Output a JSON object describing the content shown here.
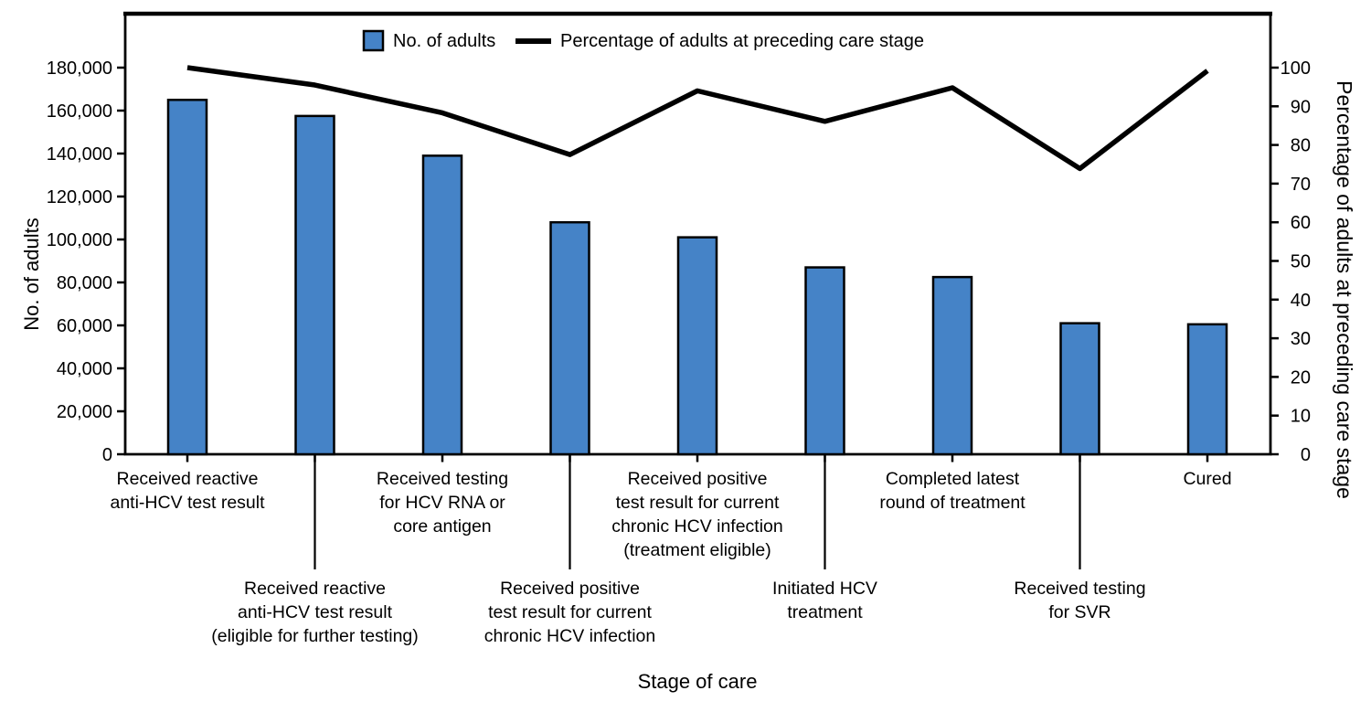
{
  "figure": {
    "background": "#FFFFFF",
    "legend": {
      "items": [
        {
          "swatch": "bar-swatch",
          "label": "No. of adults"
        },
        {
          "swatch": "line-swatch",
          "label": "Percentage of adults at preceding care stage"
        }
      ]
    },
    "colors": {
      "bar_fill": "#4583C7",
      "line": "#000000",
      "axis": "#000000",
      "text": "#000000"
    }
  },
  "chart_data": {
    "type": "bar+line",
    "title": "",
    "xlabel": "Stage of care",
    "grid": false,
    "legend_position": "top-center",
    "left_axis": {
      "label": "No. of adults",
      "min": 0,
      "max": 180000,
      "step": 20000
    },
    "right_axis": {
      "label": "Percentage of adults at preceding care stage",
      "min": 0,
      "max": 100,
      "step": 10
    },
    "categories": [
      "Received reactive anti-HCV test result",
      "Received reactive anti-HCV test result (eligible for further testing)",
      "Received testing for HCV RNA or core antigen",
      "Received positive test result for current chronic HCV infection",
      "Received positive test result for current chronic HCV infection (treatment eligible)",
      "Initiated HCV treatment",
      "Completed latest round of treatment",
      "Received testing for SVR",
      "Cured"
    ],
    "category_lines": [
      [
        "Received reactive",
        "anti-HCV test result"
      ],
      [
        "Received reactive",
        "anti-HCV test result",
        "(eligible for further testing)"
      ],
      [
        "Received testing",
        "for HCV RNA or",
        "core antigen"
      ],
      [
        "Received positive",
        "test result for current",
        "chronic HCV infection"
      ],
      [
        "Received positive",
        "test result for current",
        "chronic HCV infection",
        "(treatment eligible)"
      ],
      [
        "Initiated HCV",
        "treatment"
      ],
      [
        "Completed latest",
        "round of treatment"
      ],
      [
        "Received testing",
        "for SVR"
      ],
      [
        "Cured"
      ]
    ],
    "series": [
      {
        "name": "No. of adults",
        "type": "bar",
        "axis": "left",
        "values": [
          165000,
          157500,
          139000,
          108000,
          101000,
          87000,
          82500,
          61000,
          60500
        ]
      },
      {
        "name": "Percentage of adults at preceding care stage",
        "type": "line",
        "axis": "right",
        "values": [
          100,
          95.5,
          88.3,
          77.5,
          94.0,
          86.1,
          94.8,
          73.9,
          99.2
        ]
      }
    ]
  }
}
